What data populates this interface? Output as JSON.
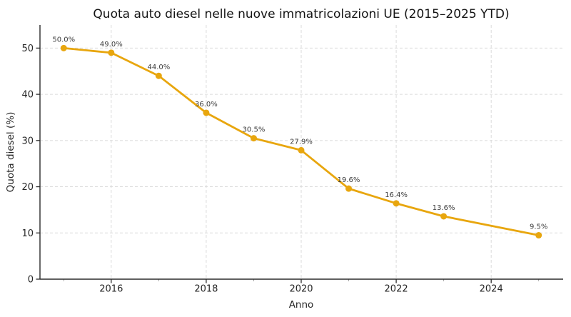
{
  "chart_data": {
    "type": "line",
    "title": "Quota auto diesel nelle nuove immatricolazioni UE (2015–2025 YTD)",
    "xlabel": "Anno",
    "ylabel": "Quota diesel (%)",
    "x": [
      2015,
      2016,
      2017,
      2018,
      2019,
      2020,
      2021,
      2022,
      2023,
      2025
    ],
    "values": [
      50.0,
      49.0,
      44.0,
      36.0,
      30.5,
      27.9,
      19.6,
      16.4,
      13.6,
      9.5
    ],
    "point_labels": [
      "50.0%",
      "49.0%",
      "44.0%",
      "36.0%",
      "30.5%",
      "27.9%",
      "19.6%",
      "16.4%",
      "13.6%",
      "9.5%"
    ],
    "xlim": [
      2014.5,
      2025.5
    ],
    "ylim": [
      0,
      55
    ],
    "x_major_ticks": [
      2016,
      2018,
      2020,
      2022,
      2024
    ],
    "x_major_tick_labels": [
      "2016",
      "2018",
      "2020",
      "2022",
      "2024"
    ],
    "x_minor_ticks": [
      2015,
      2017,
      2019,
      2021,
      2023,
      2025
    ],
    "y_major_ticks": [
      0,
      10,
      20,
      30,
      40,
      50
    ],
    "y_major_tick_labels": [
      "0",
      "10",
      "20",
      "30",
      "40",
      "50"
    ],
    "grid": "major-both-dashed",
    "legend": "none",
    "colors": {
      "line": "#E8A60E",
      "marker": "#E8A60E",
      "grid": "#DBDBDB",
      "axis": "#2B2B2B",
      "tick_label": "#262626",
      "title": "#141414",
      "point_label": "#3C3C3C"
    }
  }
}
